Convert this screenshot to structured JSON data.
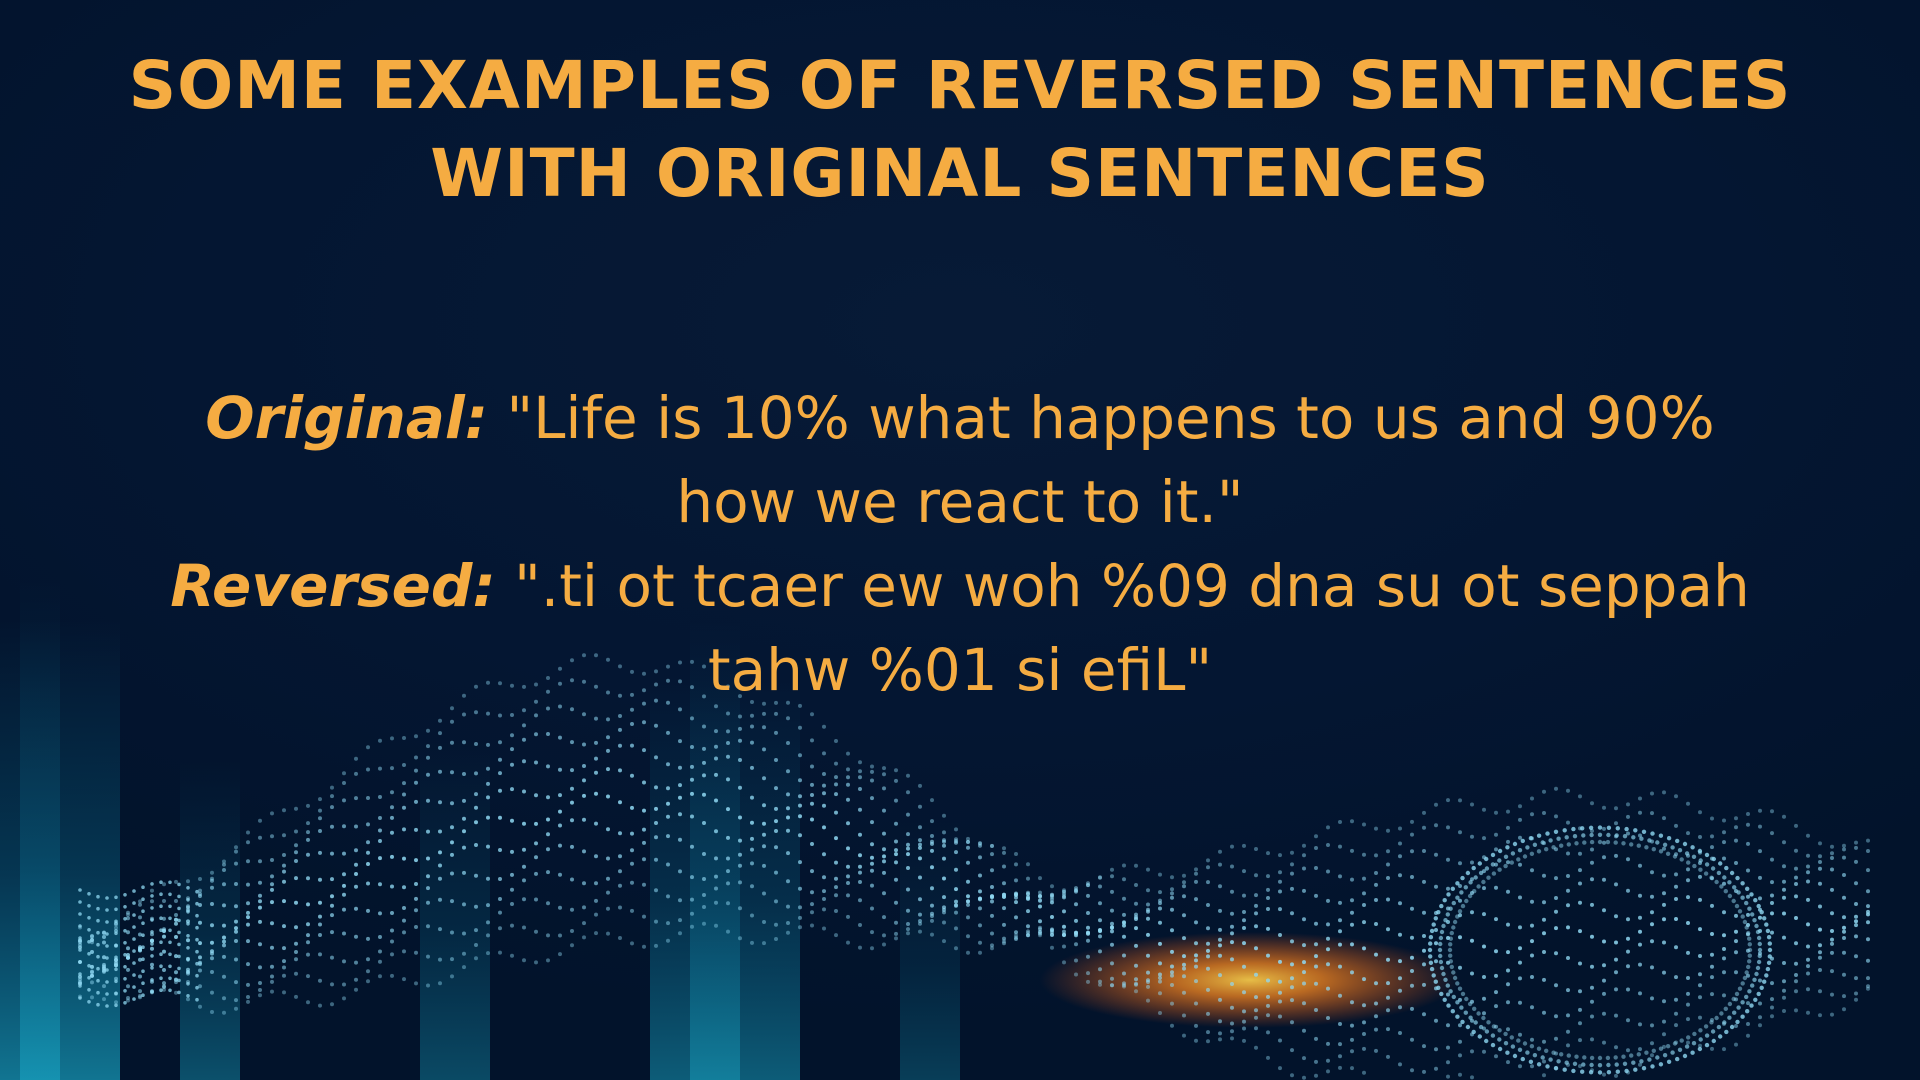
{
  "title": {
    "line1": "SOME EXAMPLES OF REVERSED SENTENCES",
    "line2": "WITH ORIGINAL SENTENCES"
  },
  "example": {
    "original_label": "Original:",
    "original_text_line1": "\"Life is 10% what happens to us and 90%",
    "original_text_line2": "how we react to it.\"",
    "reversed_label": "Reversed:",
    "reversed_text_line1": "\".ti ot tcaer ew woh %09 dna su ot seppah",
    "reversed_text_line2": "tahw %01 si efiL\""
  },
  "colors": {
    "background": "#02152f",
    "accent": "#f5ac42",
    "particles": "#8fd8f2",
    "glow": "#ff8a1e"
  }
}
